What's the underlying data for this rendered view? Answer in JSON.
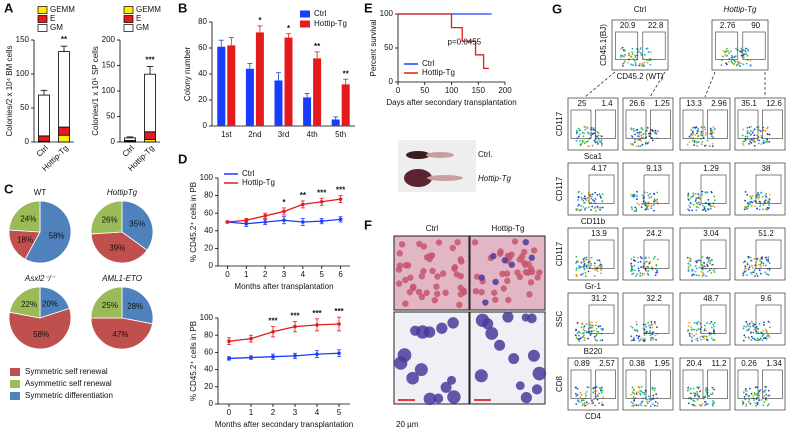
{
  "panel_labels": [
    "A",
    "B",
    "C",
    "D",
    "E",
    "F",
    "G"
  ],
  "chart_data": [
    {
      "type": "stacked_bar",
      "y_label": "Colonies/2 x 10⁴ BM cells",
      "categories": [
        "Ctrl",
        "Hottip-Tg"
      ],
      "series": [
        {
          "name": "GEMM",
          "color": "#ffee00",
          "values": [
            1,
            10
          ]
        },
        {
          "name": "E",
          "color": "#e41a1c",
          "values": [
            8,
            12
          ]
        },
        {
          "name": "GM",
          "color": "#ffffff",
          "values": [
            60,
            111
          ],
          "errors": [
            7,
            8
          ]
        }
      ],
      "ylim": [
        0,
        150
      ],
      "yticks": [
        0,
        50,
        100,
        150
      ],
      "annotations": [
        null,
        "**"
      ]
    },
    {
      "type": "stacked_bar",
      "y_label": "Colonies/1 x 10⁵ SP cells",
      "categories": [
        "Ctrl",
        "Hottip-Tg"
      ],
      "series": [
        {
          "name": "GEMM",
          "color": "#ffee00",
          "values": [
            1,
            5
          ]
        },
        {
          "name": "E",
          "color": "#e41a1c",
          "values": [
            2,
            15
          ]
        },
        {
          "name": "GM",
          "color": "#ffffff",
          "values": [
            5,
            113
          ],
          "errors": [
            2,
            15
          ]
        }
      ],
      "ylim": [
        0,
        200
      ],
      "yticks": [
        0,
        50,
        100,
        150,
        200
      ],
      "annotations": [
        null,
        "***"
      ]
    },
    {
      "type": "grouped_bar",
      "y_label": "Colony number",
      "categories": [
        "1st",
        "2nd",
        "3rd",
        "4th",
        "5th"
      ],
      "series": [
        {
          "name": "Ctrl",
          "color": "#1a3cff",
          "values": [
            61,
            44,
            35,
            22,
            5
          ],
          "errors": [
            5,
            4,
            6,
            3,
            2
          ]
        },
        {
          "name": "Hottip-Tg",
          "color": "#e41a1c",
          "values": [
            62,
            72,
            68,
            52,
            32
          ],
          "errors": [
            6,
            5,
            3,
            5,
            4
          ]
        }
      ],
      "ylim": [
        0,
        80
      ],
      "yticks": [
        0,
        20,
        40,
        60,
        80
      ],
      "annotations": [
        null,
        "*",
        "*",
        "**",
        "**"
      ],
      "legend": "upper right"
    },
    {
      "type": "pies",
      "categories": [
        "Symmetric self renewal",
        "Asymmetric self renewal",
        "Symmetric differentiation"
      ],
      "colors": [
        "#c0504d",
        "#9bbb59",
        "#4f81bd"
      ],
      "pies": [
        {
          "title": "WT",
          "values": [
            18,
            24,
            58
          ],
          "value_labels": [
            "18%",
            "24%",
            "58%"
          ]
        },
        {
          "title": "HottipTg",
          "values": [
            39,
            26,
            35
          ],
          "value_labels": [
            "39%",
            "26%",
            "35%"
          ]
        },
        {
          "title": "Asxl2⁻/⁻",
          "values": [
            58,
            22,
            20
          ],
          "value_labels": [
            "58%",
            "22%",
            "20%"
          ]
        },
        {
          "title": "AML1-ETO",
          "values": [
            47,
            25,
            28
          ],
          "value_labels": [
            "47%",
            "25%",
            "28%"
          ]
        }
      ]
    },
    {
      "type": "line",
      "y_label": "% CD45.2⁺ cells in PB",
      "x_label": "Months after transplantation",
      "x": [
        0,
        1,
        2,
        3,
        4,
        5,
        6
      ],
      "xlim": [
        -0.5,
        6.5
      ],
      "xticks": [
        0,
        1,
        2,
        3,
        4,
        5,
        6
      ],
      "ylim": [
        0,
        100
      ],
      "yticks": [
        0,
        20,
        40,
        60,
        80,
        100
      ],
      "markers": true,
      "legend": "upper left",
      "series": [
        {
          "name": "Ctrl",
          "color": "#1a3cff",
          "values": [
            50,
            48,
            50,
            52,
            50,
            51,
            53
          ],
          "errors": [
            1,
            3,
            3,
            4,
            4,
            3,
            3
          ]
        },
        {
          "name": "Hottip-Tg",
          "color": "#e41a1c",
          "values": [
            50,
            52,
            57,
            62,
            70,
            73,
            76
          ],
          "errors": [
            1,
            2,
            3,
            4,
            4,
            4,
            4
          ]
        }
      ],
      "annotations": [
        null,
        null,
        null,
        "*",
        "**",
        "***",
        "***"
      ]
    },
    {
      "type": "line",
      "y_label": "% CD45.2⁺ cells in PB",
      "x_label": "Months after secondary transplantation",
      "x": [
        0,
        1,
        2,
        3,
        4,
        5
      ],
      "xlim": [
        -0.5,
        5.5
      ],
      "xticks": [
        0,
        1,
        2,
        3,
        4,
        5
      ],
      "ylim": [
        0,
        100
      ],
      "yticks": [
        0,
        20,
        40,
        60,
        80,
        100
      ],
      "markers": true,
      "series": [
        {
          "name": "Ctrl",
          "color": "#1a3cff",
          "values": [
            53,
            54,
            55,
            56,
            58,
            59
          ],
          "errors": [
            2,
            2,
            3,
            3,
            4,
            4
          ]
        },
        {
          "name": "Hottip-Tg",
          "color": "#e41a1c",
          "values": [
            73,
            76,
            84,
            90,
            92,
            93
          ],
          "errors": [
            4,
            4,
            6,
            6,
            7,
            8
          ]
        }
      ],
      "annotations": [
        null,
        null,
        "***",
        "***",
        "***",
        "***"
      ]
    },
    {
      "type": "line",
      "y_label": "Percent survival",
      "x_label": "Days after secondary transplantation",
      "xlim": [
        0,
        200
      ],
      "xticks": [
        0,
        50,
        100,
        150,
        200
      ],
      "ylim": [
        0,
        100
      ],
      "yticks": [
        0,
        50,
        100
      ],
      "markers": false,
      "legend": "lower left",
      "annotation": "p=0.0455",
      "series": [
        {
          "name": "Ctrl",
          "color": "#1a3cff",
          "x": [
            0,
            175
          ],
          "values": [
            100,
            100
          ]
        },
        {
          "name": "Hottip-Tg",
          "color": "#e41a1c",
          "x": [
            0,
            100,
            100,
            120,
            120,
            145,
            145,
            160,
            160,
            170
          ],
          "values": [
            100,
            100,
            80,
            80,
            60,
            60,
            40,
            40,
            20,
            20
          ]
        }
      ]
    }
  ],
  "spleen_image": {
    "labels": [
      "Ctrl.",
      "Hottip-Tg"
    ]
  },
  "smear_images": {
    "columns": [
      "Ctrl",
      "Hottip-Tg"
    ],
    "scale_bar": "20 µm"
  },
  "flow": {
    "columns": [
      "Ctrl",
      "Hottip-Tg"
    ],
    "top": {
      "y_label": "CD45.1(BJ)",
      "x_label": "CD45.2 (WT)",
      "plots": [
        [
          20.9,
          22.8
        ],
        [
          2.76,
          90
        ]
      ]
    },
    "rows": [
      {
        "y_label": "CD117",
        "x_label": "Sca1",
        "plots": [
          [
            25,
            1.4
          ],
          [
            26.6,
            1.25
          ],
          [
            13.3,
            2.96
          ],
          [
            35.1,
            12.6
          ]
        ]
      },
      {
        "y_label": "CD117",
        "x_label": "CD11b",
        "plots": [
          [
            4.17
          ],
          [
            9.13
          ],
          [
            1.29
          ],
          [
            38
          ]
        ]
      },
      {
        "y_label": "CD117",
        "x_label": "Gr-1",
        "plots": [
          [
            13.9
          ],
          [
            24.2
          ],
          [
            3.04
          ],
          [
            51.2
          ]
        ]
      },
      {
        "y_label": "SSC",
        "x_label": "B220",
        "plots": [
          [
            31.2
          ],
          [
            32.2
          ],
          [
            48.7
          ],
          [
            9.6
          ]
        ]
      },
      {
        "y_label": "CD8",
        "x_label": "CD4",
        "plots": [
          [
            0.89,
            2.57
          ],
          [
            0.38,
            1.95
          ],
          [
            20.4,
            11.2
          ],
          [
            0.26,
            1.34
          ]
        ]
      }
    ]
  }
}
